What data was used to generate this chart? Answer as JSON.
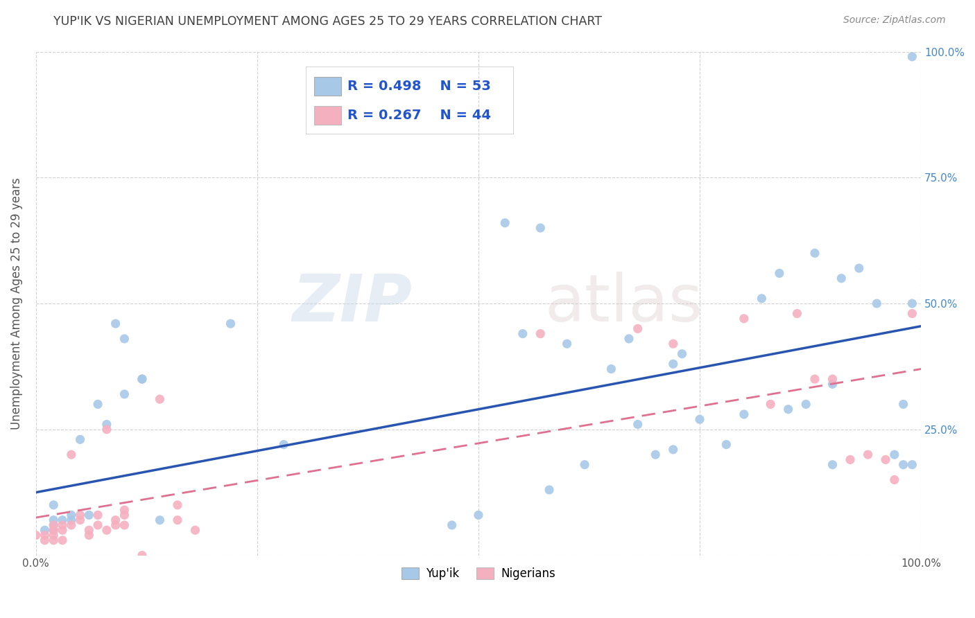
{
  "title": "YUP'IK VS NIGERIAN UNEMPLOYMENT AMONG AGES 25 TO 29 YEARS CORRELATION CHART",
  "source": "Source: ZipAtlas.com",
  "ylabel": "Unemployment Among Ages 25 to 29 years",
  "xlim": [
    0.0,
    1.0
  ],
  "ylim": [
    0.0,
    1.0
  ],
  "watermark_zip": "ZIP",
  "watermark_atlas": "atlas",
  "legend_blue_r": "R = 0.498",
  "legend_blue_n": "N = 53",
  "legend_pink_r": "R = 0.267",
  "legend_pink_n": "N = 44",
  "blue_color": "#a8c8e8",
  "pink_color": "#f5b0c0",
  "line_blue": "#2855b0",
  "line_pink": "#e07090",
  "yupik_scatter_x": [
    0.01,
    0.02,
    0.02,
    0.02,
    0.03,
    0.04,
    0.04,
    0.05,
    0.06,
    0.07,
    0.08,
    0.09,
    0.1,
    0.1,
    0.12,
    0.12,
    0.14,
    0.22,
    0.28,
    0.47,
    0.5,
    0.53,
    0.55,
    0.57,
    0.58,
    0.6,
    0.62,
    0.65,
    0.67,
    0.68,
    0.7,
    0.72,
    0.72,
    0.73,
    0.75,
    0.78,
    0.8,
    0.82,
    0.84,
    0.85,
    0.87,
    0.88,
    0.9,
    0.9,
    0.91,
    0.93,
    0.95,
    0.97,
    0.98,
    0.98,
    0.99,
    0.99,
    0.99
  ],
  "yupik_scatter_y": [
    0.05,
    0.06,
    0.07,
    0.1,
    0.07,
    0.07,
    0.08,
    0.23,
    0.08,
    0.3,
    0.26,
    0.46,
    0.32,
    0.43,
    0.35,
    0.35,
    0.07,
    0.46,
    0.22,
    0.06,
    0.08,
    0.66,
    0.44,
    0.65,
    0.13,
    0.42,
    0.18,
    0.37,
    0.43,
    0.26,
    0.2,
    0.38,
    0.21,
    0.4,
    0.27,
    0.22,
    0.28,
    0.51,
    0.56,
    0.29,
    0.3,
    0.6,
    0.34,
    0.18,
    0.55,
    0.57,
    0.5,
    0.2,
    0.18,
    0.3,
    0.18,
    0.99,
    0.5
  ],
  "nigerian_scatter_x": [
    0.0,
    0.01,
    0.01,
    0.02,
    0.02,
    0.02,
    0.02,
    0.02,
    0.03,
    0.03,
    0.03,
    0.04,
    0.04,
    0.05,
    0.05,
    0.06,
    0.06,
    0.07,
    0.07,
    0.08,
    0.08,
    0.09,
    0.09,
    0.1,
    0.1,
    0.1,
    0.12,
    0.14,
    0.16,
    0.16,
    0.18,
    0.57,
    0.68,
    0.72,
    0.8,
    0.83,
    0.86,
    0.88,
    0.9,
    0.92,
    0.94,
    0.96,
    0.97,
    0.99
  ],
  "nigerian_scatter_y": [
    0.04,
    0.03,
    0.04,
    0.03,
    0.04,
    0.05,
    0.05,
    0.06,
    0.03,
    0.05,
    0.06,
    0.06,
    0.2,
    0.07,
    0.08,
    0.04,
    0.05,
    0.06,
    0.08,
    0.05,
    0.25,
    0.06,
    0.07,
    0.06,
    0.08,
    0.09,
    0.0,
    0.31,
    0.07,
    0.1,
    0.05,
    0.44,
    0.45,
    0.42,
    0.47,
    0.3,
    0.48,
    0.35,
    0.35,
    0.19,
    0.2,
    0.19,
    0.15,
    0.48
  ],
  "blue_line_x": [
    0.0,
    1.0
  ],
  "blue_line_y": [
    0.125,
    0.455
  ],
  "pink_line_x": [
    0.0,
    1.0
  ],
  "pink_line_y": [
    0.075,
    0.37
  ],
  "background_color": "#ffffff",
  "grid_color": "#cccccc",
  "title_color": "#404040",
  "source_color": "#888888",
  "right_tick_color": "#4488cc"
}
